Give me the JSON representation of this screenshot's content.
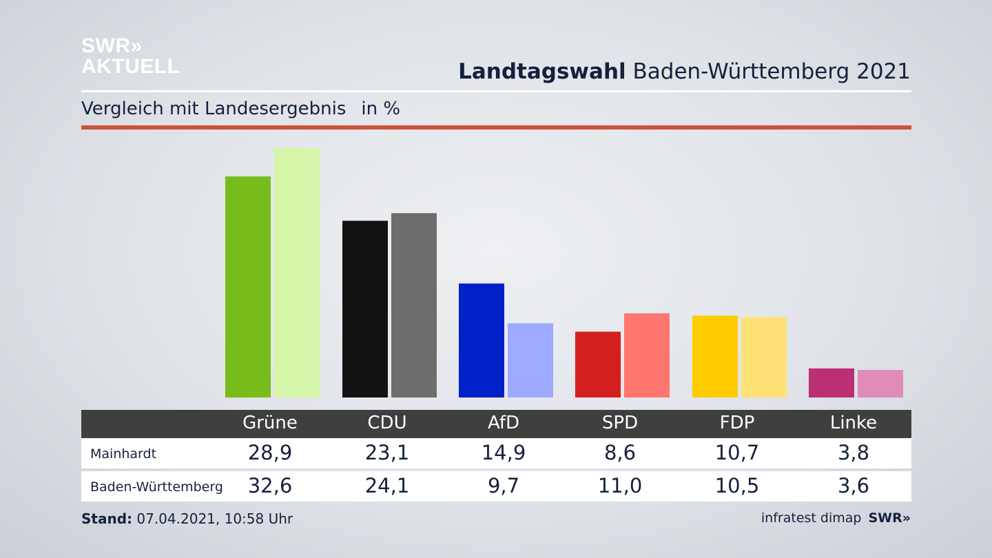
{
  "brand": {
    "logo_line1": "SWR»",
    "logo_line2": "AKTUELL"
  },
  "header": {
    "title_bold": "Landtagswahl",
    "title_rest": "Baden-Württemberg 2021",
    "subtitle": "Vergleich mit Landesergebnis",
    "unit": "in %"
  },
  "chart_data": {
    "type": "bar",
    "title": "Landtagswahl Baden-Württemberg 2021 – Vergleich mit Landesergebnis",
    "ylabel": "in %",
    "ylim": [
      0,
      32.6
    ],
    "categories": [
      "Grüne",
      "CDU",
      "AfD",
      "SPD",
      "FDP",
      "Linke"
    ],
    "series": [
      {
        "name": "Mainhardt",
        "values": [
          28.9,
          23.1,
          14.9,
          8.6,
          10.7,
          3.8
        ],
        "labels": [
          "28,9",
          "23,1",
          "14,9",
          "8,6",
          "10,7",
          "3,8"
        ],
        "colors": [
          "#78bc1c",
          "#121212",
          "#0020c8",
          "#d41f1f",
          "#ffcc00",
          "#bb2f74"
        ]
      },
      {
        "name": "Baden-Württemberg",
        "values": [
          32.6,
          24.1,
          9.7,
          11.0,
          10.5,
          3.6
        ],
        "labels": [
          "32,6",
          "24,1",
          "9,7",
          "11,0",
          "10,5",
          "3,6"
        ],
        "colors": [
          "#d5f5a8",
          "#6e6d6b",
          "#9eaaff",
          "#ff7670",
          "#ffe176",
          "#df8cb8"
        ]
      }
    ]
  },
  "footer": {
    "stand_label": "Stand:",
    "stand_value": "07.04.2021, 10:58 Uhr",
    "source": "infratest dimap",
    "source_brand": "SWR»"
  }
}
